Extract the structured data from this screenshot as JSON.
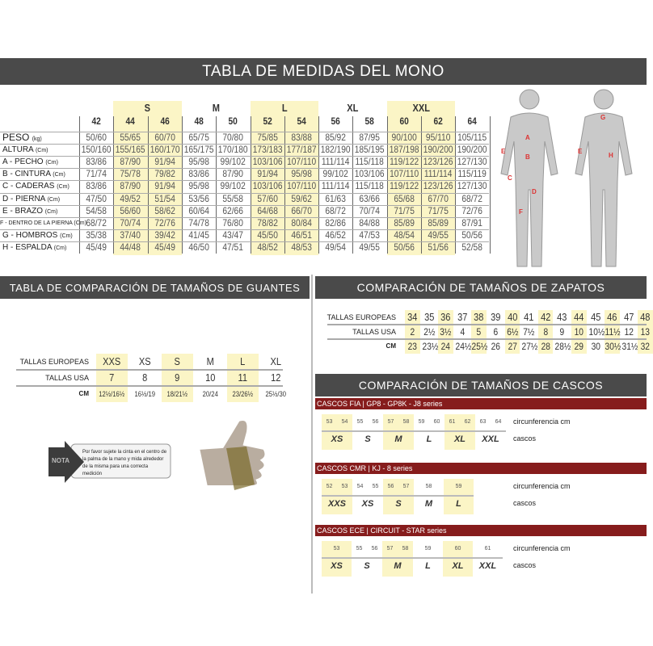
{
  "title": "TABLA DE MEDIDAS DEL MONO",
  "suit": {
    "groups": [
      {
        "label": "S",
        "cols": [
          1,
          2
        ]
      },
      {
        "label": "M",
        "cols": [
          3,
          4
        ]
      },
      {
        "label": "L",
        "cols": [
          5,
          6
        ]
      },
      {
        "label": "XL",
        "cols": [
          7,
          8
        ]
      },
      {
        "label": "XXL",
        "cols": [
          9,
          10
        ]
      }
    ],
    "highlight_cols": [
      1,
      2,
      5,
      6,
      9,
      10
    ],
    "sizes": [
      "42",
      "44",
      "46",
      "48",
      "50",
      "52",
      "54",
      "56",
      "58",
      "60",
      "62",
      "64"
    ],
    "rows": [
      {
        "label": "PESO",
        "unit": "(kg)",
        "values": [
          "50/60",
          "55/65",
          "60/70",
          "65/75",
          "70/80",
          "75/85",
          "83/88",
          "85/92",
          "87/95",
          "90/100",
          "95/110",
          "105/115"
        ]
      },
      {
        "label": "ALTURA",
        "unit": "(Cm)",
        "values": [
          "150/160",
          "155/165",
          "160/170",
          "165/175",
          "170/180",
          "173/183",
          "177/187",
          "182/190",
          "185/195",
          "187/198",
          "190/200",
          "190/200"
        ]
      },
      {
        "label": "A - PECHO",
        "unit": "(Cm)",
        "values": [
          "83/86",
          "87/90",
          "91/94",
          "95/98",
          "99/102",
          "103/106",
          "107/110",
          "111/114",
          "115/118",
          "119/122",
          "123/126",
          "127/130"
        ]
      },
      {
        "label": "B - CINTURA",
        "unit": "(Cm)",
        "values": [
          "71/74",
          "75/78",
          "79/82",
          "83/86",
          "87/90",
          "91/94",
          "95/98",
          "99/102",
          "103/106",
          "107/110",
          "111/114",
          "115/119"
        ]
      },
      {
        "label": "C - CADERAS",
        "unit": "(Cm)",
        "values": [
          "83/86",
          "87/90",
          "91/94",
          "95/98",
          "99/102",
          "103/106",
          "107/110",
          "111/114",
          "115/118",
          "119/122",
          "123/126",
          "127/130"
        ]
      },
      {
        "label": "D - PIERNA",
        "unit": "(Cm)",
        "values": [
          "47/50",
          "49/52",
          "51/54",
          "53/56",
          "55/58",
          "57/60",
          "59/62",
          "61/63",
          "63/66",
          "65/68",
          "67/70",
          "68/72"
        ]
      },
      {
        "label": "E - BRAZO",
        "unit": "(Cm)",
        "values": [
          "54/58",
          "56/60",
          "58/62",
          "60/64",
          "62/66",
          "64/68",
          "66/70",
          "68/72",
          "70/74",
          "71/75",
          "71/75",
          "72/76"
        ]
      },
      {
        "label": "F - DENTRO DE LA PIERNA",
        "unit": "(Cm)",
        "values": [
          "68/72",
          "70/74",
          "72/76",
          "74/78",
          "76/80",
          "78/82",
          "80/84",
          "82/86",
          "84/88",
          "85/89",
          "85/89",
          "87/91"
        ]
      },
      {
        "label": "G - HOMBROS",
        "unit": "(Cm)",
        "values": [
          "35/38",
          "37/40",
          "39/42",
          "41/45",
          "43/47",
          "45/50",
          "46/51",
          "46/52",
          "47/53",
          "48/54",
          "49/55",
          "50/56"
        ]
      },
      {
        "label": "H - ESPALDA",
        "unit": "(Cm)",
        "values": [
          "45/49",
          "44/48",
          "45/49",
          "46/50",
          "47/51",
          "48/52",
          "48/53",
          "49/54",
          "49/55",
          "50/56",
          "51/56",
          "52/58"
        ]
      }
    ],
    "figure_letters_front": [
      "A",
      "B",
      "C",
      "D",
      "E",
      "F"
    ],
    "figure_letters_back": [
      "G",
      "E",
      "H"
    ]
  },
  "gloves": {
    "title": "TABLA DE COMPARACIÓN DE TAMAÑOS DE GUANTES",
    "row_labels": [
      "TALLAS EUROPEAS",
      "TALLAS USA",
      "CM"
    ],
    "eu": [
      "XXS",
      "XS",
      "S",
      "M",
      "L",
      "XL"
    ],
    "usa": [
      "7",
      "8",
      "9",
      "10",
      "11",
      "12"
    ],
    "cm": [
      "12½/16½",
      "16½/19",
      "18/21½",
      "20/24",
      "23/26½",
      "25½/30"
    ],
    "highlight": [
      0,
      2,
      4
    ],
    "note_label": "NOTA",
    "note_text": "Por favor sujete la cinta en el centro de la palma de la mano y mida alrededor de la misma para una correcta medición"
  },
  "shoes": {
    "title": "COMPARACIÓN DE TAMAÑOS DE ZAPATOS",
    "row_labels": [
      "TALLAS EUROPEAS",
      "TALLAS USA",
      "CM"
    ],
    "eu": [
      "34",
      "35",
      "36",
      "37",
      "38",
      "39",
      "40",
      "41",
      "42",
      "43",
      "44",
      "45",
      "46",
      "47",
      "48"
    ],
    "usa": [
      "2",
      "2½",
      "3½",
      "4",
      "5",
      "6",
      "6½",
      "7½",
      "8",
      "9",
      "10",
      "10½",
      "11½",
      "12",
      "13"
    ],
    "cm": [
      "23",
      "23½",
      "24",
      "24½",
      "25½",
      "26",
      "27",
      "27½",
      "28",
      "28½",
      "29",
      "30",
      "30½",
      "31½",
      "32"
    ],
    "highlight": [
      0,
      2,
      4,
      6,
      8,
      10,
      12,
      14
    ]
  },
  "helmets": {
    "title": "COMPARACIÓN DE TAMAÑOS DE CASCOS",
    "circ_label": "circunferencia cm",
    "size_label": "cascos",
    "series": [
      {
        "header": "CASCOS FIA  |  GP8 - GP8K - J8 series",
        "nums": [
          "53",
          "54",
          "55",
          "56",
          "57",
          "58",
          "59",
          "60",
          "61",
          "62",
          "63",
          "64"
        ],
        "sizes": [
          "XS",
          "S",
          "M",
          "L",
          "XL",
          "XXL"
        ],
        "span": 2,
        "highlight": [
          0,
          2,
          4
        ]
      },
      {
        "header": "CASCOS CMR  | KJ - 8 series",
        "nums": [
          "52",
          "53",
          "54",
          "55",
          "56",
          "57",
          "58",
          "59"
        ],
        "sizes": [
          "XXS",
          "XS",
          "S",
          "M",
          "L"
        ],
        "groups": [
          [
            0,
            1
          ],
          [
            2,
            3
          ],
          [
            4,
            5
          ],
          [
            6
          ],
          [
            7
          ]
        ],
        "highlight": [
          0,
          2,
          4
        ]
      },
      {
        "header": "CASCOS ECE  | CIRCUIT - STAR series",
        "nums": [
          "53",
          "55",
          "56",
          "57",
          "58",
          "59",
          "60",
          "61"
        ],
        "sizes": [
          "XS",
          "S",
          "M",
          "L",
          "XL",
          "XXL"
        ],
        "groups": [
          [
            0
          ],
          [
            1,
            2
          ],
          [
            3,
            4
          ],
          [
            5
          ],
          [
            6
          ],
          [
            7
          ]
        ],
        "highlight": [
          0,
          2,
          4
        ]
      }
    ]
  },
  "colors": {
    "banner": "#4a4a4a",
    "highlight": "#fbf5c6",
    "helmet_bar": "#861c1c"
  }
}
